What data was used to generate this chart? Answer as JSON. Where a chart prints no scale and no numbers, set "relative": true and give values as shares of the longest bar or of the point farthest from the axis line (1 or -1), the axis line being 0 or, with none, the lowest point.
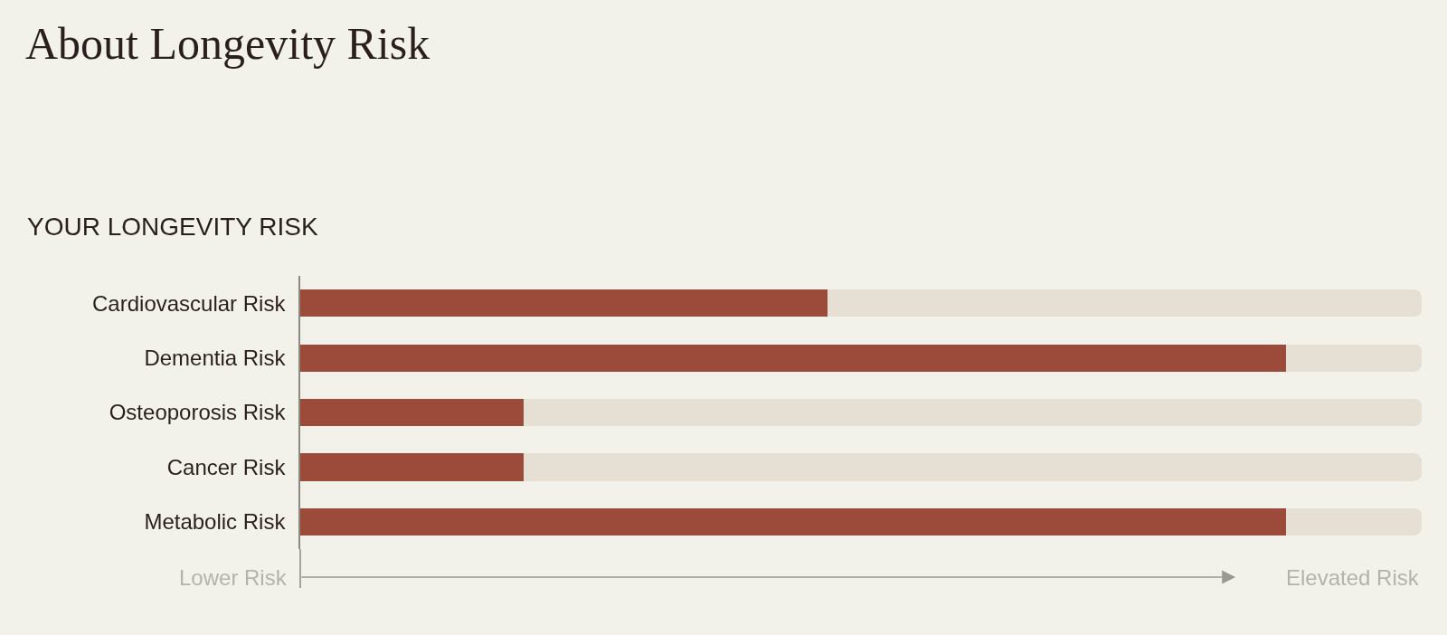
{
  "chart_data": {
    "type": "bar",
    "orientation": "horizontal",
    "stacked": true,
    "relative": true,
    "title": "About Longevity Risk",
    "subtitle": "YOUR LONGEVITY RISK",
    "categories": [
      "Cardiovascular Risk",
      "Dementia Risk",
      "Osteoporosis Risk",
      "Cancer Risk",
      "Metabolic Risk"
    ],
    "series": [
      {
        "color": "#9c4a3a",
        "values": [
          0.47,
          0.879,
          0.199,
          0.199,
          0.879
        ]
      },
      {
        "color": "#e6dfd4",
        "values": [
          0.53,
          0.121,
          0.801,
          0.801,
          0.121
        ]
      }
    ],
    "annotations": [
      "Lower Risk",
      "Elevated Risk"
    ]
  }
}
